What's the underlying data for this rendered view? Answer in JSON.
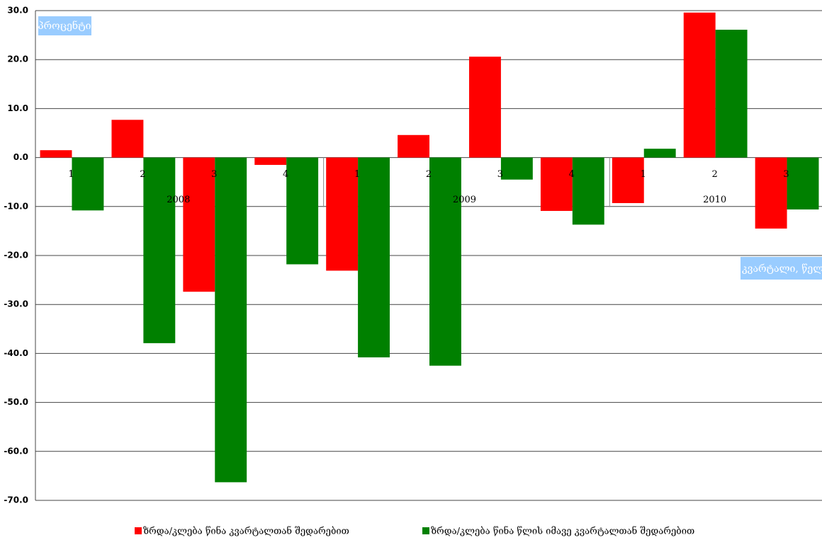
{
  "chart_data": {
    "type": "bar",
    "y_label": "პროცენტი",
    "x_label": "კვარტალი, წელი",
    "categories": [
      "1",
      "2",
      "3",
      "4",
      "1",
      "2",
      "3",
      "4",
      "1",
      "2",
      "3"
    ],
    "group_labels": [
      "2008",
      "2009",
      "2010"
    ],
    "series": [
      {
        "name": "ზრდა/კლება წინა კვარტალთან შედარებით",
        "color": "#ff0000",
        "values": [
          1.5,
          7.7,
          -27.4,
          -1.5,
          -23.1,
          4.6,
          20.6,
          -10.9,
          -9.3,
          29.6,
          -14.5
        ]
      },
      {
        "name": "ზრდა/კლება წინა წლის იმავე კვარტალთან შედარებით",
        "color": "#008000",
        "values": [
          -10.8,
          -37.9,
          -66.3,
          -21.8,
          -40.8,
          -42.5,
          -4.5,
          -13.7,
          1.8,
          26.1,
          -10.6
        ]
      }
    ],
    "ylim": [
      -70,
      30
    ],
    "yticks": [
      {
        "value": 30,
        "label": "30.0"
      },
      {
        "value": 20,
        "label": "20.0"
      },
      {
        "value": 10,
        "label": "10.0"
      },
      {
        "value": 0,
        "label": "0.0"
      },
      {
        "value": -10,
        "label": "-10.0"
      },
      {
        "value": -20,
        "label": "-20.0"
      },
      {
        "value": -30,
        "label": "-30.0"
      },
      {
        "value": -40,
        "label": "-40.0"
      },
      {
        "value": -50,
        "label": "-50.0"
      },
      {
        "value": -60,
        "label": "-60.0"
      },
      {
        "value": -70,
        "label": "-70.0"
      }
    ],
    "grid": true,
    "legend": "bottom"
  }
}
